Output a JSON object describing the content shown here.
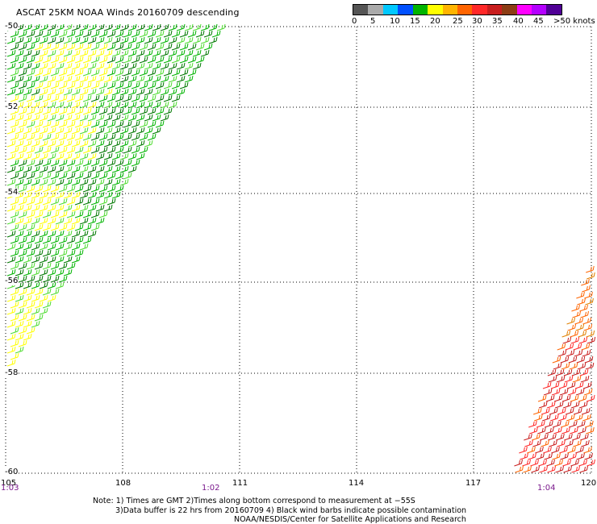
{
  "title": "ASCAT 25KM NOAA Winds 20160709 descending",
  "legend": {
    "colors": [
      "#555555",
      "#aaaaaa",
      "#00c8ff",
      "#0050ff",
      "#00b400",
      "#ffff00",
      "#ffb400",
      "#ff6400",
      "#ff2828",
      "#c81e1e",
      "#8c3c14",
      "#ff00ff",
      "#b400ff",
      "#500096"
    ],
    "labels": [
      "0",
      "5",
      "10",
      "15",
      "20",
      "25",
      "30",
      "35",
      "40",
      "45",
      ">50 knots"
    ]
  },
  "lat_labels": [
    "-50",
    "-52",
    "-54",
    "-56",
    "-58",
    "-60"
  ],
  "lon_labels": [
    "105",
    "108",
    "111",
    "114",
    "117",
    "120"
  ],
  "time_labels": [
    "1:03",
    "1:02",
    "1:04"
  ],
  "notes": [
    "Note: 1) Times are GMT 2)Times along bottom correspond to measurement at −55S",
    "3)Data buffer is 22 hrs from 20160709 4) Black wind barbs indicate possible contamination",
    "NOAA/NESDIS/Center for Satellite Applications and Research"
  ],
  "swaths": [
    {
      "name": "west-swath",
      "speed_colors": [
        "#00b400",
        "#007800",
        "#50dc32",
        "#ffff00",
        "#ffe000"
      ]
    },
    {
      "name": "east-swath",
      "speed_colors": [
        "#ff6400",
        "#c81e1e",
        "#ff2828",
        "#e08000"
      ]
    }
  ]
}
